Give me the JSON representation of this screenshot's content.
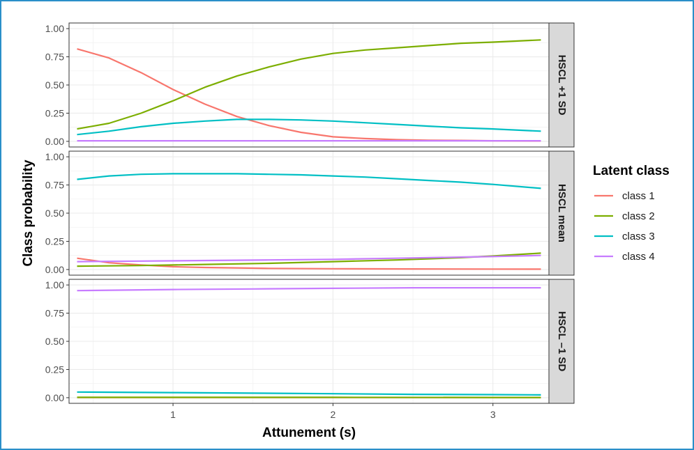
{
  "chart_data": {
    "type": "line",
    "xlabel": "Attunement (s)",
    "ylabel": "Class probability",
    "xlim": [
      0.35,
      3.35
    ],
    "ylim": [
      -0.05,
      1.05
    ],
    "x_ticks": [
      1,
      2,
      3
    ],
    "x_tick_labels": [
      "1",
      "2",
      "3"
    ],
    "y_ticks": [
      0,
      0.25,
      0.5,
      0.75,
      1
    ],
    "y_tick_labels": [
      "0.00",
      "0.25",
      "0.50",
      "0.75",
      "1.00"
    ],
    "grid": true,
    "legend": {
      "title": "Latent class",
      "placement": "right",
      "entries": [
        "class 1",
        "class 2",
        "class 3",
        "class 4"
      ]
    },
    "colors": {
      "class 1": "#F8766D",
      "class 2": "#7CAE00",
      "class 3": "#00BFC4",
      "class 4": "#C77CFF"
    },
    "panels": [
      {
        "label": "HSCL  +1 SD",
        "series": [
          {
            "name": "class 1",
            "x": [
              0.4,
              0.6,
              0.8,
              1.0,
              1.2,
              1.4,
              1.6,
              1.8,
              2.0,
              2.2,
              2.4,
              2.6,
              2.8,
              3.0,
              3.3
            ],
            "y": [
              0.82,
              0.74,
              0.61,
              0.46,
              0.33,
              0.22,
              0.14,
              0.08,
              0.04,
              0.025,
              0.015,
              0.01,
              0.008,
              0.005,
              0.003
            ]
          },
          {
            "name": "class 2",
            "x": [
              0.4,
              0.6,
              0.8,
              1.0,
              1.2,
              1.4,
              1.6,
              1.8,
              2.0,
              2.2,
              2.4,
              2.6,
              2.8,
              3.0,
              3.3
            ],
            "y": [
              0.11,
              0.16,
              0.25,
              0.36,
              0.48,
              0.58,
              0.66,
              0.73,
              0.78,
              0.81,
              0.83,
              0.85,
              0.87,
              0.88,
              0.9
            ]
          },
          {
            "name": "class 3",
            "x": [
              0.4,
              0.6,
              0.8,
              1.0,
              1.2,
              1.4,
              1.6,
              1.8,
              2.0,
              2.2,
              2.4,
              2.6,
              2.8,
              3.0,
              3.3
            ],
            "y": [
              0.06,
              0.09,
              0.13,
              0.16,
              0.18,
              0.195,
              0.195,
              0.19,
              0.18,
              0.165,
              0.15,
              0.135,
              0.12,
              0.11,
              0.09
            ]
          },
          {
            "name": "class 4",
            "x": [
              0.4,
              1.0,
              2.0,
              3.0,
              3.3
            ],
            "y": [
              0.005,
              0.005,
              0.005,
              0.005,
              0.005
            ]
          }
        ]
      },
      {
        "label": "HSCL  mean",
        "series": [
          {
            "name": "class 1",
            "x": [
              0.4,
              0.6,
              0.8,
              1.0,
              1.2,
              1.4,
              1.6,
              2.0,
              2.5,
              3.0,
              3.3
            ],
            "y": [
              0.1,
              0.06,
              0.04,
              0.025,
              0.018,
              0.014,
              0.01,
              0.007,
              0.005,
              0.004,
              0.003
            ]
          },
          {
            "name": "class 2",
            "x": [
              0.4,
              0.8,
              1.2,
              1.6,
              2.0,
              2.4,
              2.8,
              3.0,
              3.3
            ],
            "y": [
              0.03,
              0.035,
              0.045,
              0.055,
              0.07,
              0.085,
              0.105,
              0.12,
              0.145
            ]
          },
          {
            "name": "class 3",
            "x": [
              0.4,
              0.6,
              0.8,
              1.0,
              1.2,
              1.4,
              1.6,
              1.8,
              2.0,
              2.2,
              2.4,
              2.6,
              2.8,
              3.0,
              3.3
            ],
            "y": [
              0.8,
              0.83,
              0.845,
              0.85,
              0.85,
              0.85,
              0.845,
              0.84,
              0.83,
              0.82,
              0.805,
              0.79,
              0.775,
              0.755,
              0.72
            ]
          },
          {
            "name": "class 4",
            "x": [
              0.4,
              0.8,
              1.2,
              1.6,
              2.0,
              2.4,
              2.8,
              3.0,
              3.3
            ],
            "y": [
              0.07,
              0.075,
              0.08,
              0.085,
              0.09,
              0.1,
              0.11,
              0.115,
              0.125
            ]
          }
        ]
      },
      {
        "label": "HSCL  –1 SD",
        "series": [
          {
            "name": "class 1",
            "x": [
              0.4,
              1.0,
              2.0,
              3.0,
              3.3
            ],
            "y": [
              0.001,
              0.001,
              0.001,
              0.001,
              0.001
            ]
          },
          {
            "name": "class 2",
            "x": [
              0.4,
              1.0,
              2.0,
              3.0,
              3.3
            ],
            "y": [
              0.003,
              0.003,
              0.003,
              0.002,
              0.002
            ]
          },
          {
            "name": "class 3",
            "x": [
              0.4,
              1.0,
              1.5,
              2.0,
              2.5,
              3.0,
              3.3
            ],
            "y": [
              0.05,
              0.045,
              0.04,
              0.035,
              0.03,
              0.027,
              0.025
            ]
          },
          {
            "name": "class 4",
            "x": [
              0.4,
              1.0,
              1.5,
              2.0,
              2.5,
              3.0,
              3.3
            ],
            "y": [
              0.95,
              0.96,
              0.965,
              0.97,
              0.975,
              0.975,
              0.975
            ]
          }
        ]
      }
    ]
  }
}
